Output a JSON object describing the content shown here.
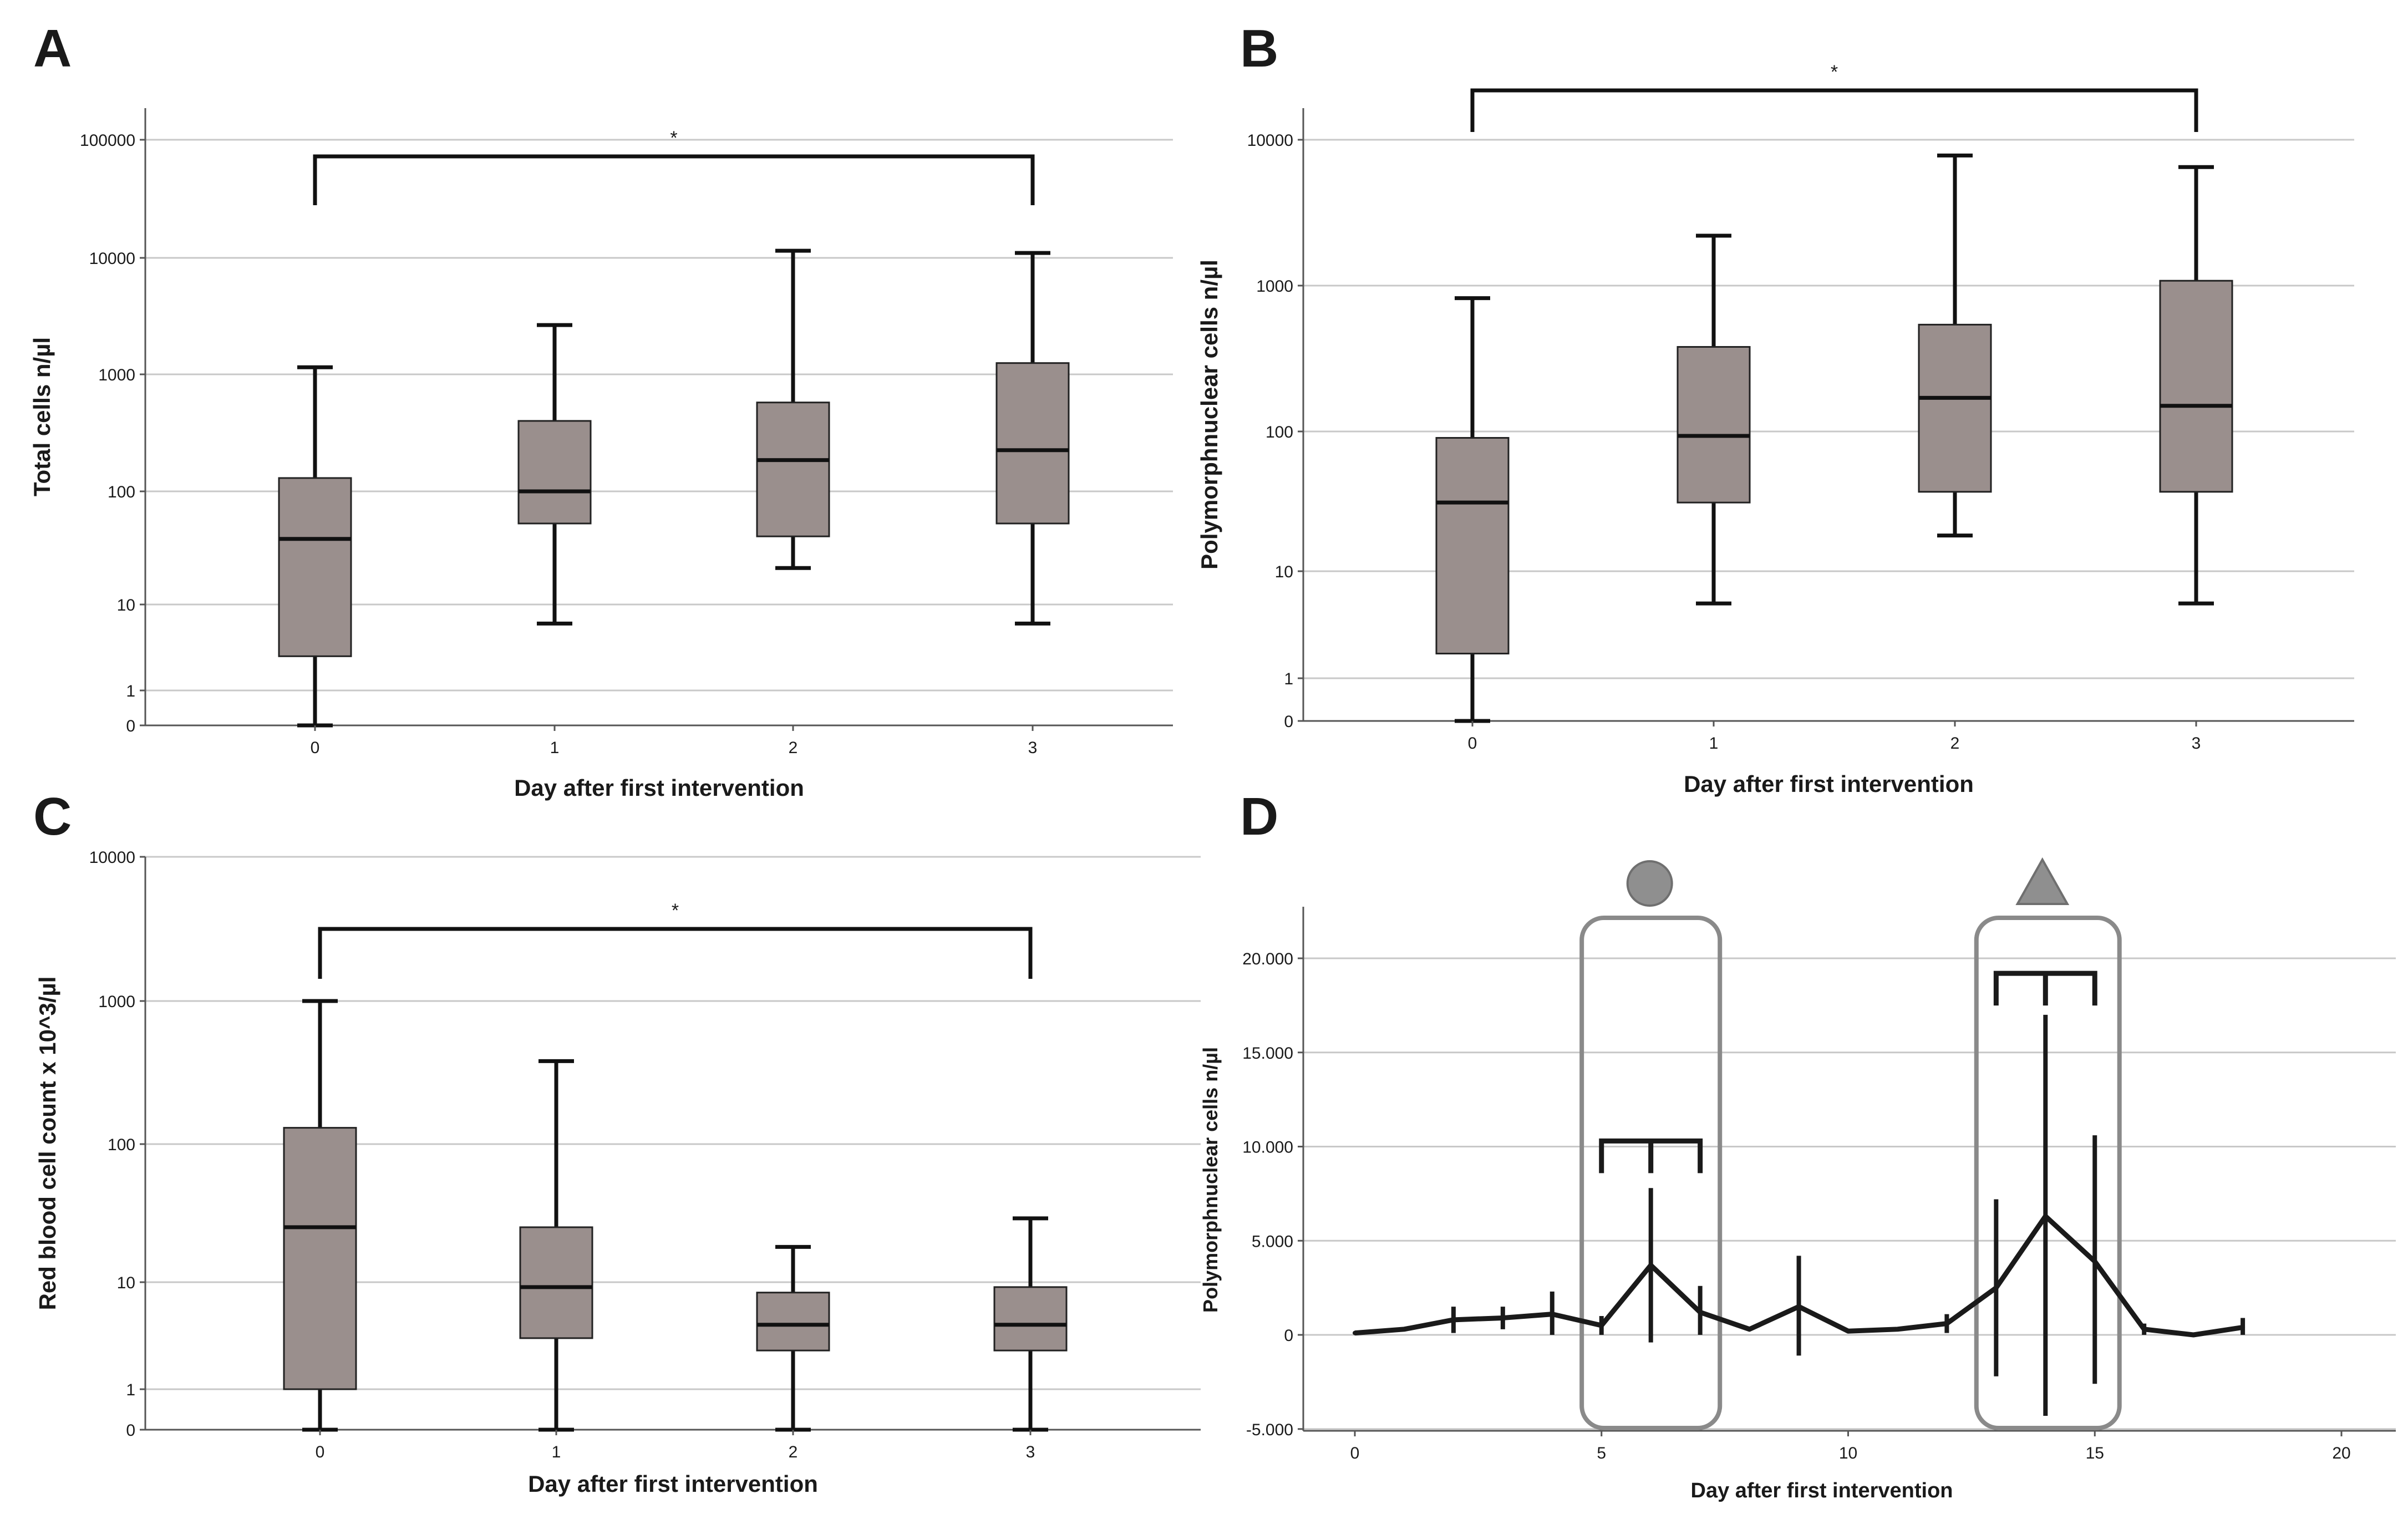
{
  "chart_data": [
    {
      "id": "A",
      "type": "box",
      "panel_label": "A",
      "xlabel": "Day after first intervention",
      "ylabel": "Total cells n/µl",
      "yscale": "log-symlog",
      "categories": [
        "0",
        "1",
        "2",
        "3"
      ],
      "y_ticks": [
        "100000",
        "10000",
        "1000",
        "100",
        "10",
        "1",
        "0"
      ],
      "y_tick_values": [
        100000,
        10000,
        1000,
        100,
        10,
        1,
        0
      ],
      "boxes": [
        {
          "min": 0,
          "q1": 2.5,
          "median": 38,
          "q3": 130,
          "max": 1150
        },
        {
          "min": 6,
          "q1": 52,
          "median": 100,
          "q3": 400,
          "max": 2650
        },
        {
          "min": 21,
          "q1": 40,
          "median": 185,
          "q3": 575,
          "max": 11500
        },
        {
          "min": 6,
          "q1": 52,
          "median": 225,
          "q3": 1250,
          "max": 11000
        }
      ],
      "significance": {
        "from": "0",
        "to": "3",
        "label": "*"
      }
    },
    {
      "id": "B",
      "type": "box",
      "panel_label": "B",
      "xlabel": "Day after first intervention",
      "ylabel": "Polymorphnuclear cells  n/µl",
      "yscale": "log-symlog",
      "categories": [
        "0",
        "1",
        "2",
        "3"
      ],
      "y_ticks": [
        "10000",
        "1000",
        "100",
        "10",
        "1",
        "0"
      ],
      "y_tick_values": [
        10000,
        1000,
        100,
        10,
        1,
        0
      ],
      "boxes": [
        {
          "min": 0,
          "q1": 1.7,
          "median": 31,
          "q3": 90,
          "max": 820
        },
        {
          "min": 5,
          "q1": 31,
          "median": 93,
          "q3": 380,
          "max": 2200
        },
        {
          "min": 18,
          "q1": 37,
          "median": 170,
          "q3": 540,
          "max": 7800
        },
        {
          "min": 5,
          "q1": 37,
          "median": 150,
          "q3": 1080,
          "max": 6500
        }
      ],
      "significance": {
        "from": "0",
        "to": "3",
        "label": "*"
      }
    },
    {
      "id": "C",
      "type": "box",
      "panel_label": "C",
      "xlabel": "Day after first intervention",
      "ylabel": "Red blood cell count x 10^3/µl",
      "yscale": "log-symlog",
      "categories": [
        "0",
        "1",
        "2",
        "3"
      ],
      "y_ticks": [
        "10000",
        "1000",
        "100",
        "10",
        "1",
        "0"
      ],
      "y_tick_values": [
        10000,
        1000,
        100,
        10,
        1,
        0
      ],
      "boxes": [
        {
          "min": 0,
          "q1": 1,
          "median": 25,
          "q3": 130,
          "max": 1000
        },
        {
          "min": 0,
          "q1": 3,
          "median": 9,
          "q3": 25,
          "max": 380
        },
        {
          "min": 0,
          "q1": 2.3,
          "median": 4,
          "q3": 8,
          "max": 18
        },
        {
          "min": 0,
          "q1": 2.3,
          "median": 4,
          "q3": 9,
          "max": 29
        }
      ],
      "significance": {
        "from": "0",
        "to": "3",
        "label": "*"
      }
    },
    {
      "id": "D",
      "type": "line",
      "panel_label": "D",
      "xlabel": "Day after first intervention",
      "ylabel": "Polymorphnuclear cells n/µl",
      "xlim": [
        -1,
        21
      ],
      "ylim": [
        -5000,
        23000
      ],
      "x_ticks": [
        "0",
        "5",
        "10",
        "15",
        "20"
      ],
      "x_tick_values": [
        0,
        5,
        10,
        15,
        20
      ],
      "y_ticks": [
        "20.000",
        "15.000",
        "10.000",
        "5.000",
        "0",
        "-5.000"
      ],
      "y_tick_values": [
        20000,
        15000,
        10000,
        5000,
        0,
        -5000
      ],
      "points": [
        {
          "x": 0,
          "y": 100,
          "lo": 100,
          "hi": 100
        },
        {
          "x": 1,
          "y": 300,
          "lo": 300,
          "hi": 300
        },
        {
          "x": 2,
          "y": 800,
          "lo": 100,
          "hi": 1500
        },
        {
          "x": 3,
          "y": 900,
          "lo": 300,
          "hi": 1500
        },
        {
          "x": 4,
          "y": 1100,
          "lo": 0,
          "hi": 2300
        },
        {
          "x": 5,
          "y": 500,
          "lo": 0,
          "hi": 1000
        },
        {
          "x": 6,
          "y": 3700,
          "lo": -400,
          "hi": 7800
        },
        {
          "x": 7,
          "y": 1200,
          "lo": 0,
          "hi": 2600
        },
        {
          "x": 8,
          "y": 300,
          "lo": 300,
          "hi": 300
        },
        {
          "x": 9,
          "y": 1500,
          "lo": -1100,
          "hi": 4200
        },
        {
          "x": 10,
          "y": 200,
          "lo": 200,
          "hi": 200
        },
        {
          "x": 11,
          "y": 300,
          "lo": 300,
          "hi": 300
        },
        {
          "x": 12,
          "y": 600,
          "lo": 100,
          "hi": 1100
        },
        {
          "x": 13,
          "y": 2500,
          "lo": -2200,
          "hi": 7200
        },
        {
          "x": 14,
          "y": 6300,
          "lo": -4300,
          "hi": 17000
        },
        {
          "x": 15,
          "y": 3900,
          "lo": -2600,
          "hi": 10600
        },
        {
          "x": 16,
          "y": 300,
          "lo": 0,
          "hi": 600
        },
        {
          "x": 17,
          "y": 0,
          "lo": 0,
          "hi": 0
        },
        {
          "x": 18,
          "y": 400,
          "lo": 0,
          "hi": 900
        }
      ],
      "highlight_windows": [
        {
          "marker": "circle",
          "x_from": 4.6,
          "x_to": 7.4,
          "bracket_x": [
            5,
            6,
            7
          ],
          "bracket_y": 10300,
          "color": "#8f8f8f"
        },
        {
          "marker": "triangle",
          "x_from": 12.6,
          "x_to": 15.5,
          "bracket_x": [
            13,
            14,
            15
          ],
          "bracket_y": 19200,
          "color": "#8f8f8f"
        }
      ]
    }
  ]
}
